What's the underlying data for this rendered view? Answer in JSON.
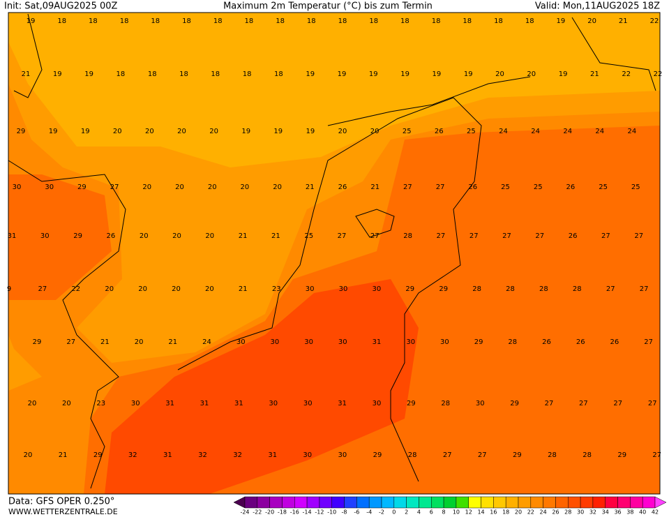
{
  "header": {
    "init": "Init: Sat,09AUG2025 00Z",
    "title": "Maximum 2m Temperatur (°C) bis zum Termin",
    "valid": "Valid: Mon,11AUG2025 18Z"
  },
  "map": {
    "rows": [
      [
        19,
        18,
        18,
        18,
        18,
        18,
        18,
        18,
        18,
        18,
        18,
        18,
        18,
        18,
        18,
        18,
        18,
        19,
        20,
        21,
        22
      ],
      [
        21,
        19,
        19,
        18,
        18,
        18,
        18,
        18,
        18,
        19,
        19,
        19,
        19,
        19,
        19,
        20,
        20,
        19,
        21,
        22,
        22
      ],
      [
        29,
        19,
        19,
        20,
        20,
        20,
        20,
        19,
        19,
        19,
        20,
        20,
        25,
        26,
        25,
        24,
        24,
        24,
        24,
        24
      ],
      [
        30,
        30,
        29,
        27,
        20,
        20,
        20,
        20,
        20,
        21,
        26,
        21,
        27,
        27,
        26,
        25,
        25,
        26,
        25,
        25
      ],
      [
        31,
        30,
        29,
        26,
        20,
        20,
        20,
        21,
        21,
        25,
        27,
        27,
        28,
        27,
        27,
        27,
        27,
        26,
        27,
        27
      ],
      [
        9,
        27,
        22,
        20,
        20,
        20,
        20,
        21,
        23,
        30,
        30,
        30,
        29,
        29,
        28,
        28,
        28,
        28,
        27,
        27
      ],
      [
        29,
        27,
        21,
        20,
        21,
        24,
        30,
        30,
        30,
        30,
        31,
        30,
        30,
        29,
        28,
        26,
        26,
        26,
        27
      ],
      [
        20,
        20,
        23,
        30,
        31,
        31,
        31,
        30,
        30,
        31,
        30,
        29,
        28,
        30,
        29,
        27,
        27,
        27,
        27
      ],
      [
        20,
        21,
        29,
        32,
        31,
        32,
        32,
        31,
        30,
        30,
        29,
        28,
        27,
        27,
        29,
        28,
        28,
        29,
        27
      ]
    ]
  },
  "colorbar": {
    "ticks": [
      -24,
      -22,
      -20,
      -18,
      -16,
      -14,
      -12,
      -10,
      -8,
      -6,
      -4,
      -2,
      0,
      2,
      4,
      6,
      8,
      10,
      12,
      14,
      16,
      18,
      20,
      22,
      24,
      26,
      28,
      30,
      32,
      34,
      36,
      38,
      40,
      42
    ]
  },
  "footer": {
    "data": "Data: GFS OPER 0.250°",
    "site": "WWW.WETTERZENTRALE.DE"
  }
}
